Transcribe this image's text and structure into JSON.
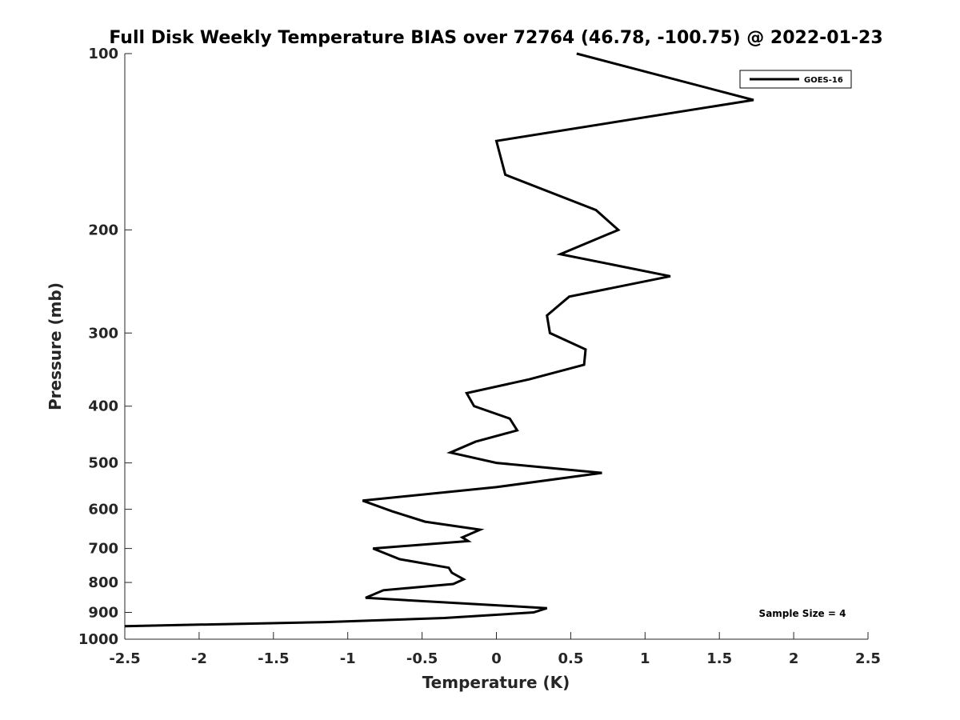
{
  "chart_data": {
    "type": "line",
    "title": "Full Disk Weekly Temperature BIAS over 72764 (46.78, -100.75) @ 2022-01-23",
    "xlabel": "Temperature (K)",
    "ylabel": "Pressure (mb)",
    "xlim": [
      -2.5,
      2.5
    ],
    "ylim": [
      100,
      1000
    ],
    "yscale": "log",
    "y_reversed": true,
    "grid": false,
    "legend_position": "top-right",
    "xticks": [
      -2.5,
      -2,
      -1.5,
      -1,
      -0.5,
      0,
      0.5,
      1,
      1.5,
      2,
      2.5
    ],
    "xtick_labels": [
      "-2.5",
      "-2",
      "-1.5",
      "-1",
      "-0.5",
      "0",
      "0.5",
      "1",
      "1.5",
      "2",
      "2.5"
    ],
    "yticks": [
      100,
      200,
      300,
      400,
      500,
      600,
      700,
      800,
      900,
      1000
    ],
    "ytick_labels": [
      "100",
      "200",
      "300",
      "400",
      "500",
      "600",
      "700",
      "800",
      "900",
      "1000"
    ],
    "annotation": "Sample Size = 4",
    "series": [
      {
        "name": "GOES-16",
        "color": "#000000",
        "points": [
          {
            "x": 0.54,
            "p": 100
          },
          {
            "x": 1.73,
            "p": 120
          },
          {
            "x": 0.0,
            "p": 141
          },
          {
            "x": 0.06,
            "p": 161
          },
          {
            "x": 0.67,
            "p": 185
          },
          {
            "x": 0.82,
            "p": 200
          },
          {
            "x": 0.43,
            "p": 220
          },
          {
            "x": 1.17,
            "p": 240
          },
          {
            "x": 0.49,
            "p": 260
          },
          {
            "x": 0.34,
            "p": 280
          },
          {
            "x": 0.36,
            "p": 300
          },
          {
            "x": 0.6,
            "p": 320
          },
          {
            "x": 0.59,
            "p": 340
          },
          {
            "x": 0.22,
            "p": 360
          },
          {
            "x": -0.2,
            "p": 380
          },
          {
            "x": -0.15,
            "p": 400
          },
          {
            "x": 0.09,
            "p": 420
          },
          {
            "x": 0.14,
            "p": 440
          },
          {
            "x": -0.14,
            "p": 460
          },
          {
            "x": -0.31,
            "p": 480
          },
          {
            "x": 0.0,
            "p": 500
          },
          {
            "x": 0.71,
            "p": 520
          },
          {
            "x": 0.0,
            "p": 550
          },
          {
            "x": -0.9,
            "p": 580
          },
          {
            "x": -0.7,
            "p": 605
          },
          {
            "x": -0.48,
            "p": 630
          },
          {
            "x": -0.11,
            "p": 650
          },
          {
            "x": -0.23,
            "p": 670
          },
          {
            "x": -0.19,
            "p": 680
          },
          {
            "x": -0.83,
            "p": 700
          },
          {
            "x": -0.65,
            "p": 730
          },
          {
            "x": -0.32,
            "p": 755
          },
          {
            "x": -0.3,
            "p": 770
          },
          {
            "x": -0.22,
            "p": 790
          },
          {
            "x": -0.29,
            "p": 805
          },
          {
            "x": -0.76,
            "p": 825
          },
          {
            "x": -0.88,
            "p": 850
          },
          {
            "x": 0.34,
            "p": 885
          },
          {
            "x": 0.25,
            "p": 900
          },
          {
            "x": -0.35,
            "p": 920
          },
          {
            "x": -1.15,
            "p": 935
          },
          {
            "x": -2.5,
            "p": 950
          }
        ]
      }
    ]
  }
}
